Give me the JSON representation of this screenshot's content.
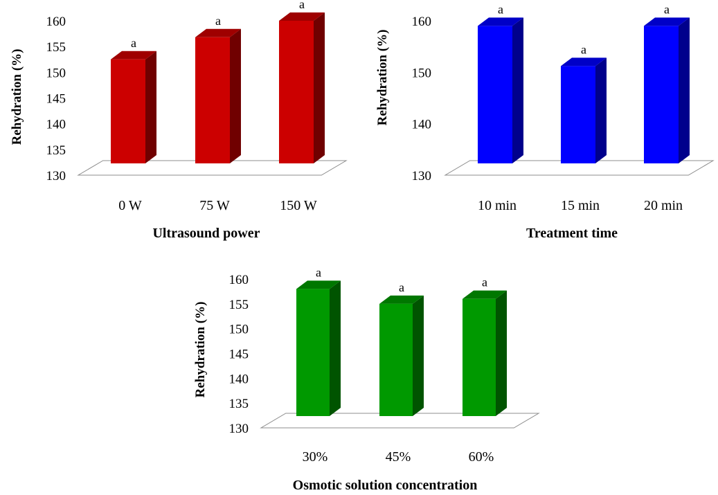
{
  "chart_data": [
    {
      "type": "bar",
      "categories": [
        "0 W",
        "75 W",
        "150 W"
      ],
      "values": [
        152.5,
        156.8,
        160.0
      ],
      "data_labels": [
        "a",
        "a",
        "a"
      ],
      "title": "",
      "xlabel": "Ultrasound power",
      "ylabel": "Rehydration (%)",
      "ylim": [
        130,
        160
      ],
      "yticks": [
        "160",
        "155",
        "150",
        "145",
        "140",
        "135",
        "130"
      ],
      "bar_color": "#cc0000",
      "grid": false,
      "style": "3d"
    },
    {
      "type": "bar",
      "categories": [
        "10 min",
        "15 min",
        "20 min"
      ],
      "values": [
        159.0,
        151.2,
        159.0
      ],
      "data_labels": [
        "a",
        "a",
        "a"
      ],
      "title": "",
      "xlabel": "Treatment time",
      "ylabel": "Rehydration (%)",
      "ylim": [
        130,
        160
      ],
      "yticks": [
        "160",
        "150",
        "140",
        "130"
      ],
      "bar_color": "#0000ff",
      "grid": false,
      "style": "3d"
    },
    {
      "type": "bar",
      "categories": [
        "30%",
        "45%",
        "60%"
      ],
      "values": [
        158.0,
        155.0,
        156.0
      ],
      "data_labels": [
        "a",
        "a",
        "a"
      ],
      "title": "",
      "xlabel": "Osmotic solution concentration",
      "ylabel": "Rehydration (%)",
      "ylim": [
        130,
        160
      ],
      "yticks": [
        "160",
        "155",
        "150",
        "145",
        "140",
        "135",
        "130"
      ],
      "bar_color": "#009900",
      "grid": false,
      "style": "3d"
    }
  ]
}
